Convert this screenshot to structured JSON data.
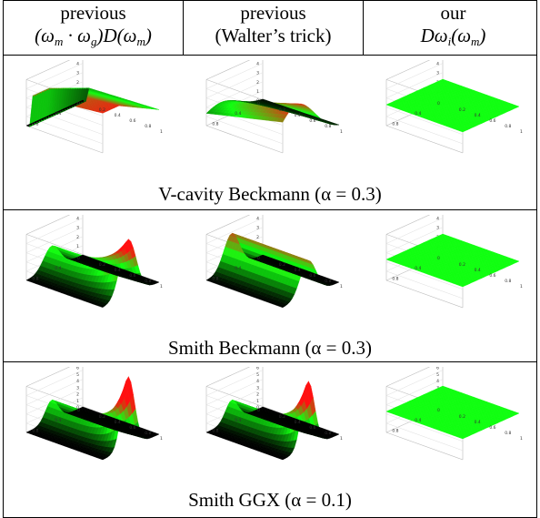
{
  "columns": [
    {
      "line1": "previous",
      "line2": "(ωm · ωg)D(ωm)"
    },
    {
      "line1": "previous",
      "line2": "(Walter’s trick)"
    },
    {
      "line1": "our",
      "line2": "Dωi(ωm)"
    }
  ],
  "rows": [
    {
      "caption": "V-cavity Beckmann (α = 0.3)",
      "type_a": "V-cavity Beckmann",
      "alpha": 0.3
    },
    {
      "caption": "Smith Beckmann (α = 0.3)",
      "type_a": "Smith Beckmann",
      "alpha": 0.3
    },
    {
      "caption": "Smith GGX (α = 0.1)",
      "type_a": "Smith GGX",
      "alpha": 0.1
    }
  ],
  "axis_ticks": {
    "left_depth": [
      "0.8",
      "0.4",
      "0"
    ],
    "right_depth": [
      "0.2",
      "0.4",
      "0.6",
      "0.8",
      "1"
    ],
    "vertical_row1": [
      "5",
      "4",
      "3",
      "2",
      "1",
      "0"
    ],
    "vertical_row2": [
      "5",
      "4",
      "3",
      "2",
      "1",
      "0"
    ],
    "vertical_row3": [
      "7",
      "6",
      "5",
      "4",
      "3",
      "2",
      "1",
      "0"
    ]
  },
  "colors": {
    "high": "#ff1010",
    "mid": "#10ff10",
    "low": "#000000",
    "grid": "#bbbbbb"
  }
}
